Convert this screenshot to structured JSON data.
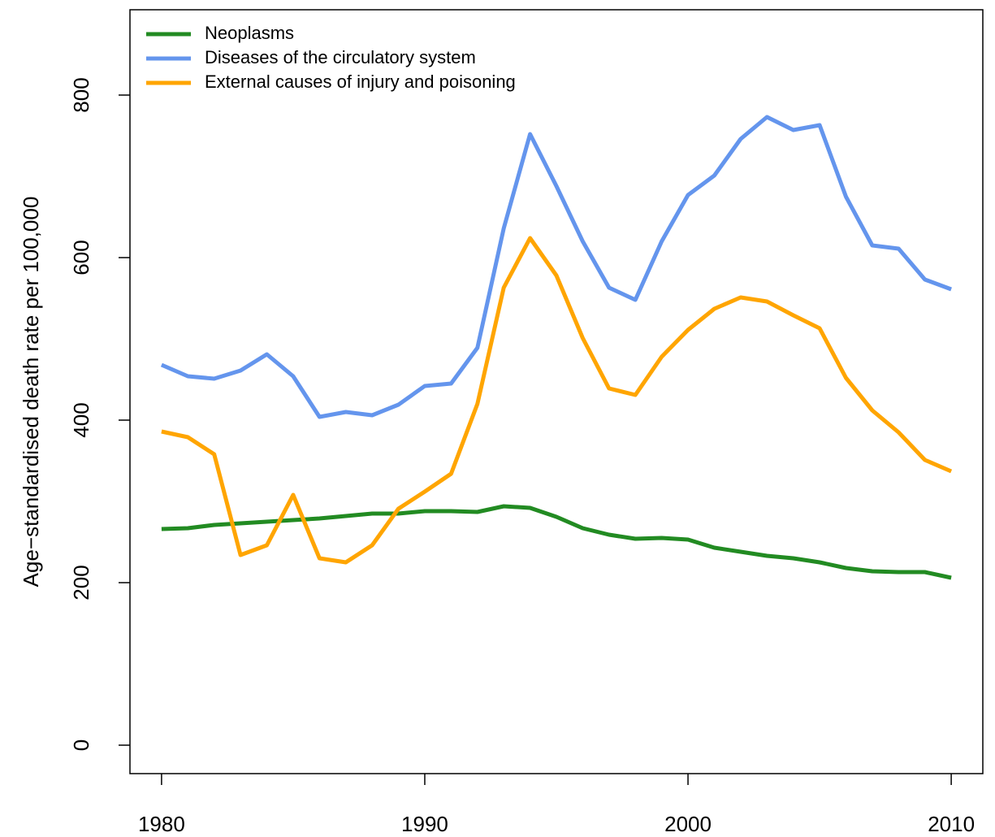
{
  "chart_data": {
    "type": "line",
    "ylabel": "Age−standardised death rate per 100,000",
    "x": [
      1980,
      1981,
      1982,
      1983,
      1984,
      1985,
      1986,
      1987,
      1988,
      1989,
      1990,
      1991,
      1992,
      1993,
      1994,
      1995,
      1996,
      1997,
      1998,
      1999,
      2000,
      2001,
      2002,
      2003,
      2004,
      2005,
      2006,
      2007,
      2008,
      2009,
      2010
    ],
    "series": [
      {
        "name": "Neoplasms",
        "color": "#228b22",
        "values": [
          266,
          267,
          271,
          273,
          275,
          277,
          279,
          282,
          285,
          285,
          288,
          288,
          287,
          294,
          292,
          281,
          267,
          259,
          254,
          255,
          253,
          243,
          238,
          233,
          230,
          225,
          218,
          214,
          213,
          213,
          206
        ]
      },
      {
        "name": "Diseases of the circulatory system",
        "color": "#6495ed",
        "values": [
          468,
          454,
          451,
          461,
          481,
          454,
          404,
          410,
          406,
          419,
          442,
          445,
          489,
          636,
          752,
          688,
          620,
          563,
          548,
          620,
          677,
          701,
          746,
          773,
          757,
          763,
          675,
          615,
          611,
          573,
          561
        ]
      },
      {
        "name": "External causes of injury and poisoning",
        "color": "#ffa500",
        "values": [
          386,
          379,
          358,
          234,
          246,
          308,
          230,
          225,
          246,
          291,
          312,
          334,
          420,
          563,
          624,
          578,
          501,
          439,
          431,
          478,
          511,
          537,
          551,
          546,
          529,
          513,
          452,
          412,
          385,
          351,
          337
        ]
      }
    ],
    "xlim": [
      1978.8,
      2011.2
    ],
    "xticks": [
      1980,
      1990,
      2000,
      2010
    ],
    "ylim": [
      -35,
      905
    ],
    "yticks": [
      0,
      200,
      400,
      600,
      800
    ],
    "legend": "top-left"
  }
}
